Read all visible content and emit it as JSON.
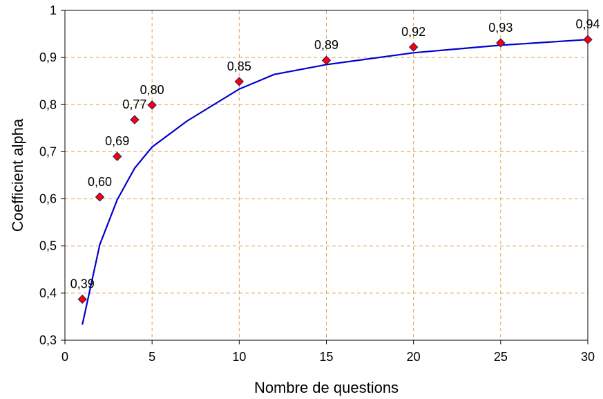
{
  "chart_data": {
    "type": "scatter",
    "xlabel": "Nombre de questions",
    "ylabel": "Coefficient alpha",
    "xlim": [
      0,
      30
    ],
    "ylim": [
      0.3,
      1.0
    ],
    "x_ticks": [
      0,
      5,
      10,
      15,
      20,
      25,
      30
    ],
    "y_ticks": [
      0.3,
      0.4,
      0.5,
      0.6,
      0.7,
      0.8,
      0.9,
      1.0
    ],
    "x_tick_labels": [
      "0",
      "5",
      "10",
      "15",
      "20",
      "25",
      "30"
    ],
    "y_tick_labels": [
      "0,3",
      "0,4",
      "0,5",
      "0,6",
      "0,7",
      "0,8",
      "0,9",
      "1"
    ],
    "grid": true,
    "legend": "none",
    "points": {
      "x": [
        1,
        2,
        3,
        4,
        5,
        10,
        15,
        20,
        25,
        30
      ],
      "y": [
        0.387,
        0.604,
        0.69,
        0.768,
        0.799,
        0.849,
        0.894,
        0.922,
        0.931,
        0.938
      ],
      "labels": [
        "0,39",
        "0,60",
        "0,69",
        "0,77",
        "0,80",
        "0,85",
        "0,89",
        "0,92",
        "0,93",
        "0,94"
      ],
      "marker_fill": "#ff0000",
      "marker_edge": "#1a1a7a"
    },
    "trend_line": {
      "x": [
        1,
        2,
        3,
        4,
        5,
        7,
        10,
        12,
        15,
        20,
        25,
        30
      ],
      "y": [
        0.333,
        0.503,
        0.598,
        0.665,
        0.71,
        0.765,
        0.833,
        0.864,
        0.885,
        0.91,
        0.926,
        0.938
      ],
      "color": "#0000cc"
    },
    "grid_color": "#e0a050"
  }
}
